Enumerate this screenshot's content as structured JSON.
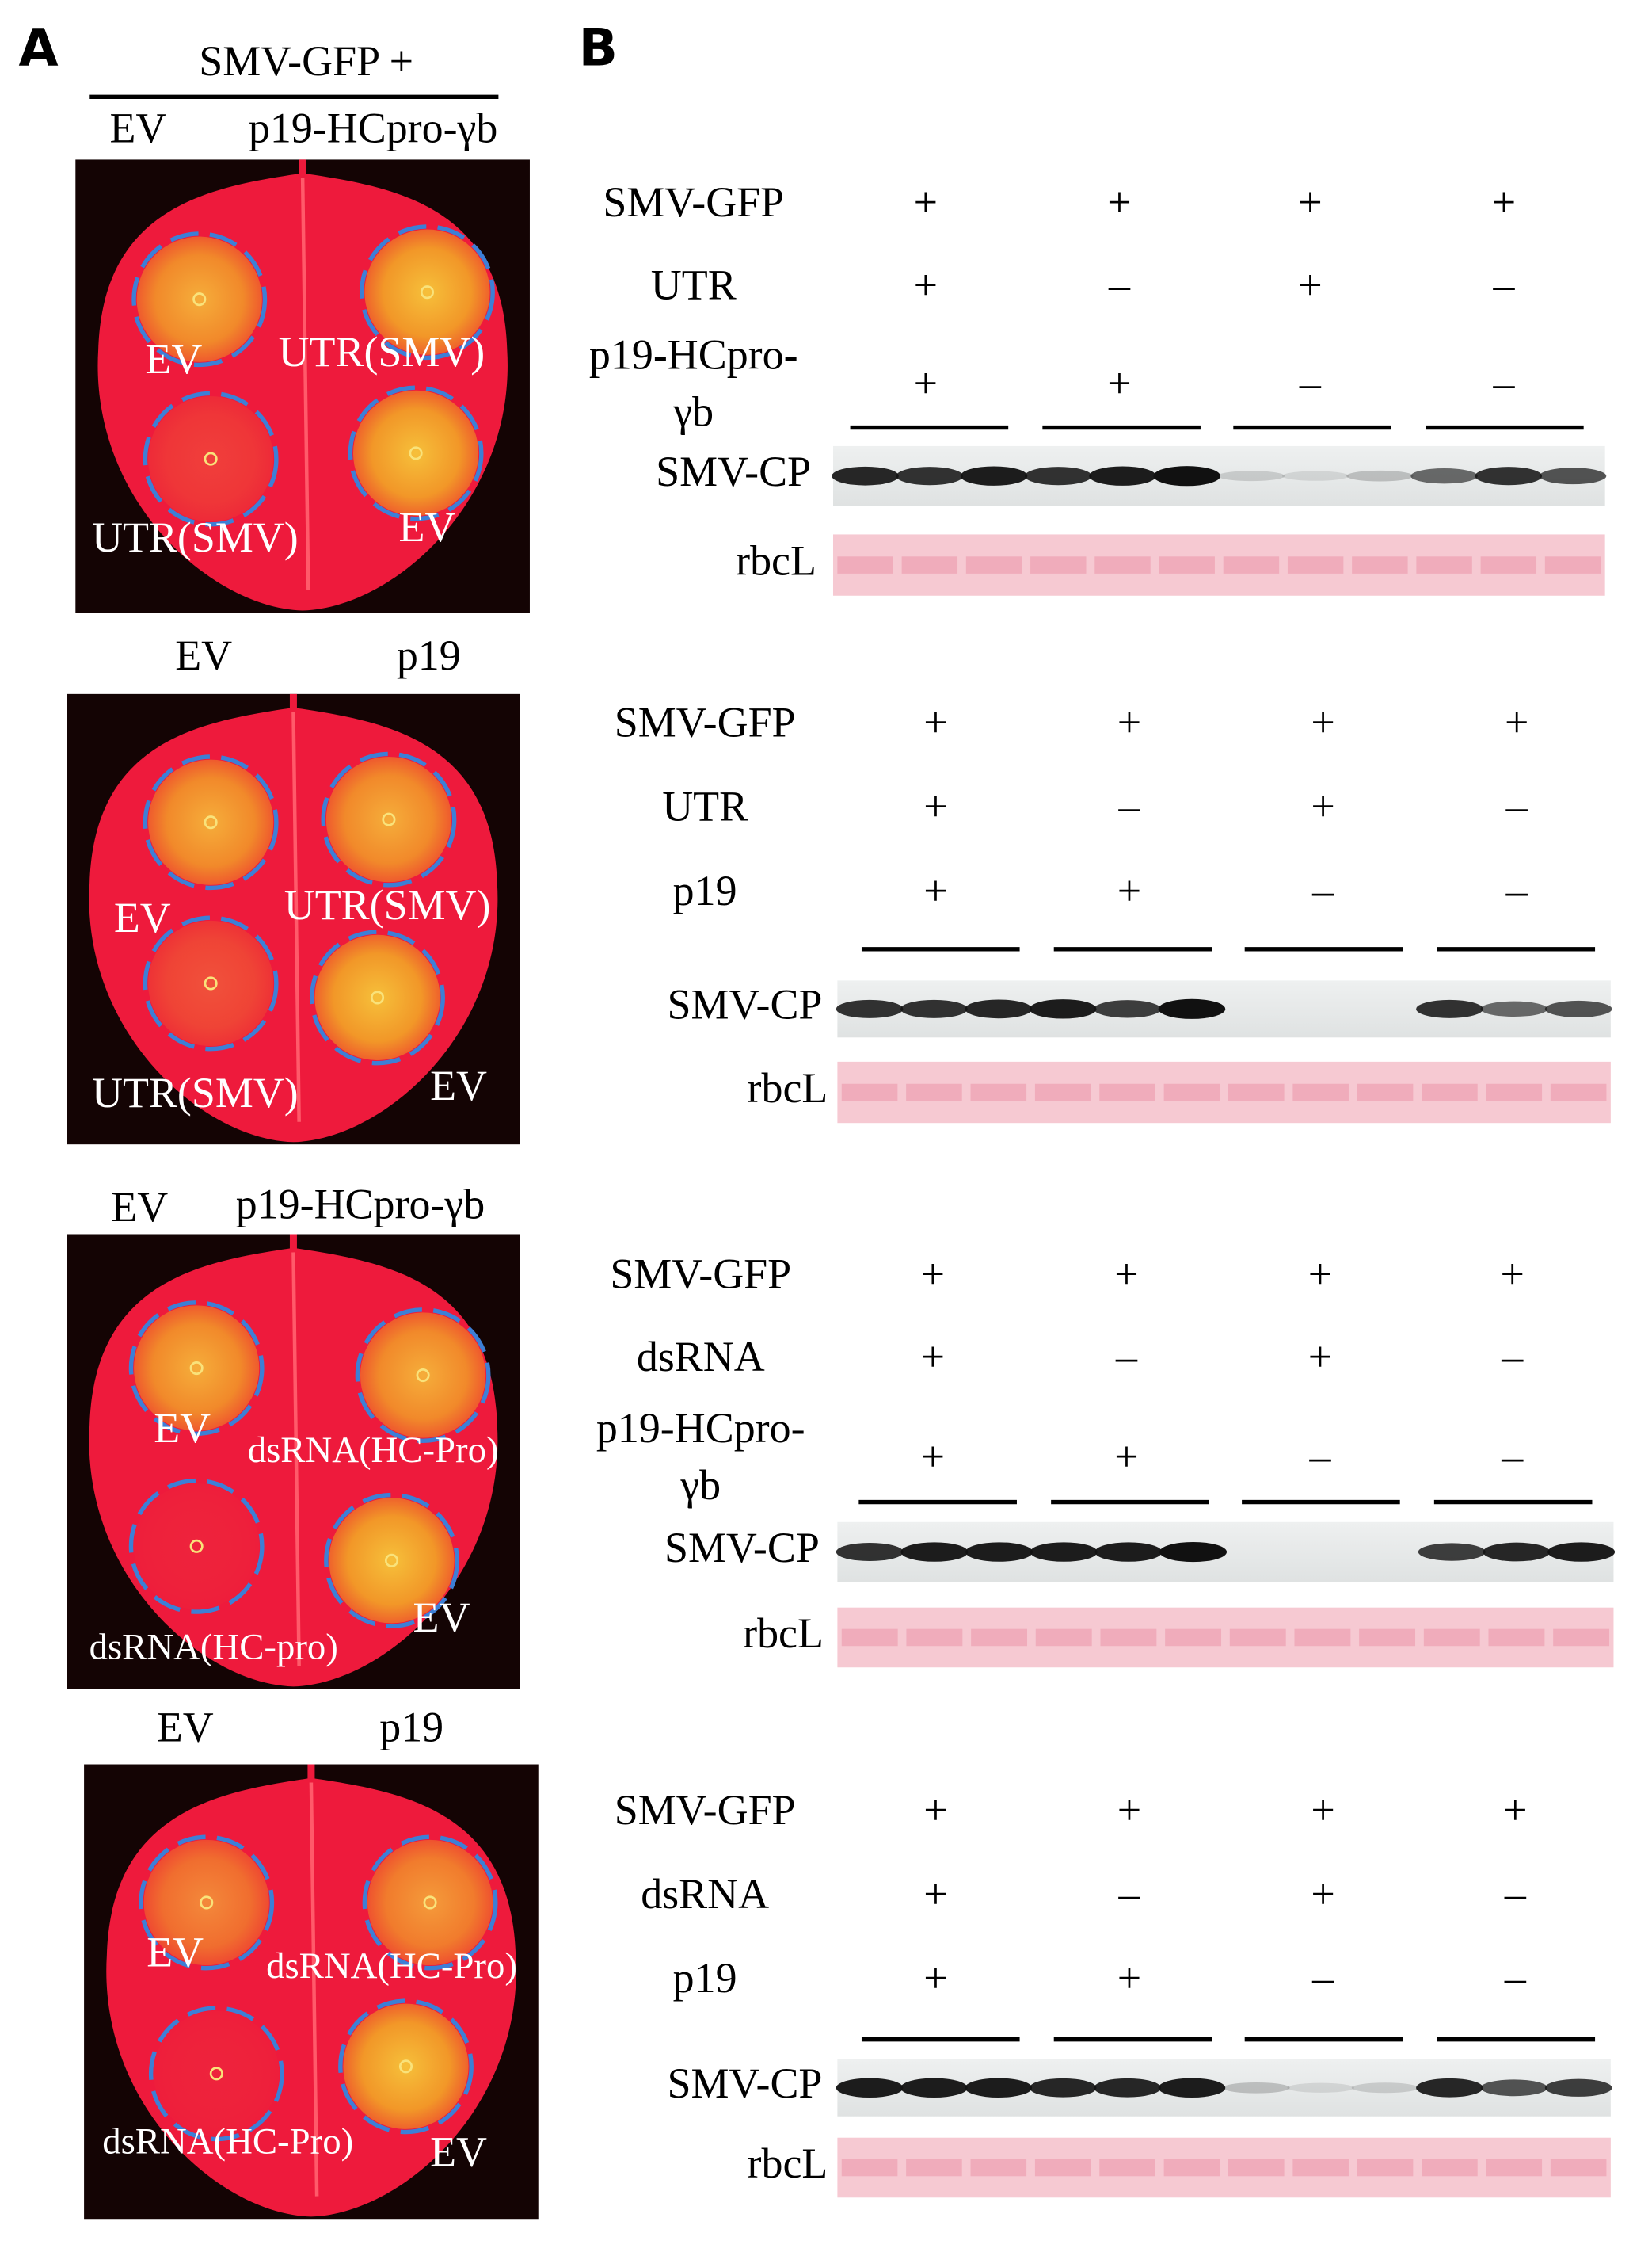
{
  "panel_a": {
    "label": "A",
    "header": "SMV-GFP +",
    "leaves": [
      {
        "top_labels": [
          "EV",
          "p19-HCpro-γb"
        ],
        "spot_labels": [
          "EV",
          "UTR(SMV)",
          "UTR(SMV)",
          "EV"
        ]
      },
      {
        "top_labels": [
          "EV",
          "p19"
        ],
        "spot_labels": [
          "EV",
          "UTR(SMV)",
          "UTR(SMV)",
          "EV"
        ]
      },
      {
        "top_labels": [
          "EV",
          "p19-HCpro-γb"
        ],
        "spot_labels": [
          "EV",
          "dsRNA(HC-Pro)",
          "dsRNA(HC-pro)",
          "EV"
        ]
      },
      {
        "top_labels": [
          "EV",
          "p19"
        ],
        "spot_labels": [
          "EV",
          "dsRNA(HC-Pro)",
          "dsRNA(HC-Pro)",
          "EV"
        ]
      }
    ]
  },
  "panel_b": {
    "label": "B",
    "blots": [
      {
        "rows": [
          {
            "name": [
              "SMV-GFP"
            ],
            "signs": [
              "+",
              "+",
              "+",
              "+"
            ]
          },
          {
            "name": [
              "UTR"
            ],
            "signs": [
              "+",
              "–",
              "+",
              "–"
            ]
          },
          {
            "name": [
              "p19-HCpro-",
              "γb"
            ],
            "signs": [
              "+",
              "+",
              "–",
              "–"
            ]
          }
        ],
        "bands": [
          "SMV-CP",
          "rbcL"
        ]
      },
      {
        "rows": [
          {
            "name": [
              "SMV-GFP"
            ],
            "signs": [
              "+",
              "+",
              "+",
              "+"
            ]
          },
          {
            "name": [
              "UTR"
            ],
            "signs": [
              "+",
              "–",
              "+",
              "–"
            ]
          },
          {
            "name": [
              "p19"
            ],
            "signs": [
              "+",
              "+",
              "–",
              "–"
            ]
          }
        ],
        "bands": [
          "SMV-CP",
          "rbcL"
        ]
      },
      {
        "rows": [
          {
            "name": [
              "SMV-GFP"
            ],
            "signs": [
              "+",
              "+",
              "+",
              "+"
            ]
          },
          {
            "name": [
              "dsRNA"
            ],
            "signs": [
              "+",
              "–",
              "+",
              "–"
            ]
          },
          {
            "name": [
              "p19-HCpro-",
              "γb"
            ],
            "signs": [
              "+",
              "+",
              "–",
              "–"
            ]
          }
        ],
        "bands": [
          "SMV-CP",
          "rbcL"
        ]
      },
      {
        "rows": [
          {
            "name": [
              "SMV-GFP"
            ],
            "signs": [
              "+",
              "+",
              "+",
              "+"
            ]
          },
          {
            "name": [
              "dsRNA"
            ],
            "signs": [
              "+",
              "–",
              "+",
              "–"
            ]
          },
          {
            "name": [
              "p19"
            ],
            "signs": [
              "+",
              "+",
              "–",
              "–"
            ]
          }
        ],
        "bands": [
          "SMV-CP",
          "rbcL"
        ]
      }
    ]
  }
}
